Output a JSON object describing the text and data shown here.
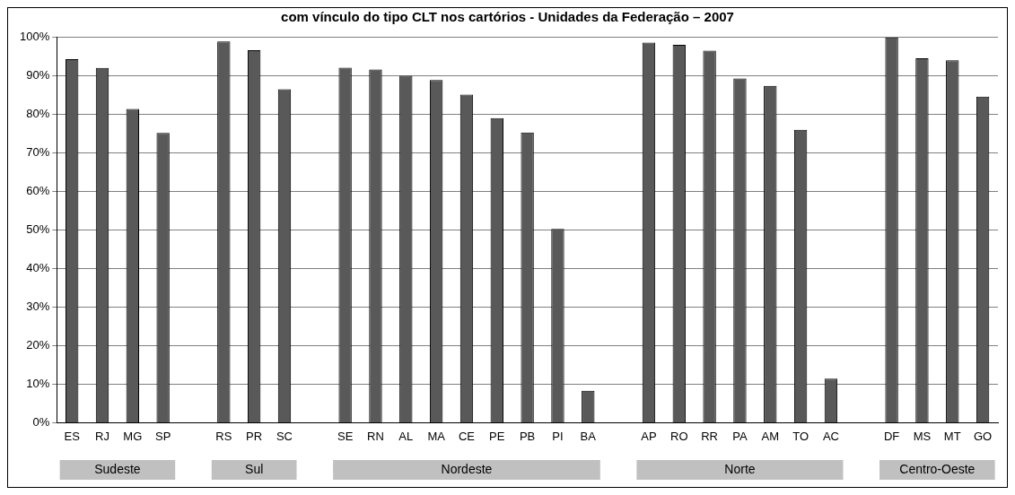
{
  "chart_data": {
    "type": "bar",
    "title": "com vínculo do tipo CLT nos cartórios - Unidades da Federação – 2007",
    "categories": [
      "ES",
      "RJ",
      "MG",
      "SP",
      null,
      "RS",
      "PR",
      "SC",
      null,
      "SE",
      "RN",
      "AL",
      "MA",
      "CE",
      "PE",
      "PB",
      "PI",
      "BA",
      null,
      "AP",
      "RO",
      "RR",
      "PA",
      "AM",
      "TO",
      "AC",
      null,
      "DF",
      "MS",
      "MT",
      "GO"
    ],
    "values": [
      94.2,
      91.9,
      81.3,
      75.1,
      null,
      98.8,
      96.5,
      86.4,
      null,
      92.0,
      91.5,
      89.9,
      88.8,
      85.0,
      78.9,
      75.2,
      50.2,
      8.3,
      null,
      98.5,
      97.9,
      96.4,
      89.2,
      87.3,
      75.9,
      11.4,
      null,
      99.8,
      94.4,
      93.9,
      84.5
    ],
    "color": "#595959",
    "ylim": [
      0,
      100
    ],
    "yticks": [
      {
        "value": 0,
        "label": "0%"
      },
      {
        "value": 10,
        "label": "10%"
      },
      {
        "value": 20,
        "label": "20%"
      },
      {
        "value": 30,
        "label": "30%"
      },
      {
        "value": 40,
        "label": "40%"
      },
      {
        "value": 50,
        "label": "50%"
      },
      {
        "value": 60,
        "label": "60%"
      },
      {
        "value": 70,
        "label": "70%"
      },
      {
        "value": 80,
        "label": "80%"
      },
      {
        "value": 90,
        "label": "90%"
      },
      {
        "value": 100,
        "label": "100%"
      }
    ],
    "grid": "y",
    "legend": false,
    "annotations": [
      "Sudeste",
      "Sul",
      "Nordeste",
      "Norte",
      "Centro-Oeste"
    ]
  }
}
